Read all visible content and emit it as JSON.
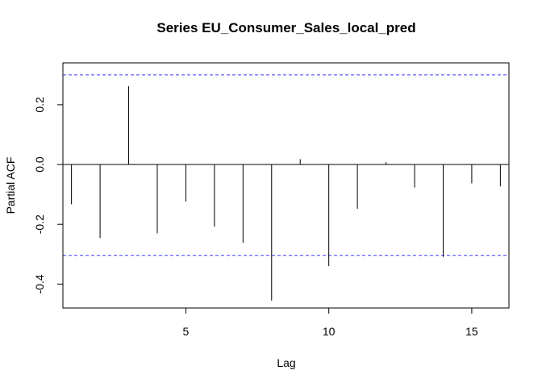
{
  "chart_data": {
    "type": "bar",
    "title": "Series  EU_Consumer_Sales_local_pred",
    "xlabel": "Lag",
    "ylabel": "Partial ACF",
    "xlim": [
      0.7,
      16.3
    ],
    "ylim": [
      -0.48,
      0.34
    ],
    "x_ticks": [
      5,
      10,
      15
    ],
    "y_ticks": [
      -0.4,
      -0.2,
      0.0,
      0.2
    ],
    "y_tick_labels": [
      "-0.4",
      "-0.2",
      "0.0",
      "0.2"
    ],
    "x_tick_labels": [
      "5",
      "10",
      "15"
    ],
    "confidence_bounds": [
      0.3,
      -0.304
    ],
    "bound_color": "#3b3bff",
    "grid": false,
    "lags": [
      1,
      2,
      3,
      4,
      5,
      6,
      7,
      8,
      9,
      10,
      11,
      12,
      13,
      14,
      15,
      16
    ],
    "values": [
      -0.133,
      -0.246,
      0.262,
      -0.23,
      -0.124,
      -0.208,
      -0.262,
      -0.455,
      0.018,
      -0.34,
      -0.148,
      0.008,
      -0.077,
      -0.309,
      -0.063,
      -0.073
    ]
  }
}
